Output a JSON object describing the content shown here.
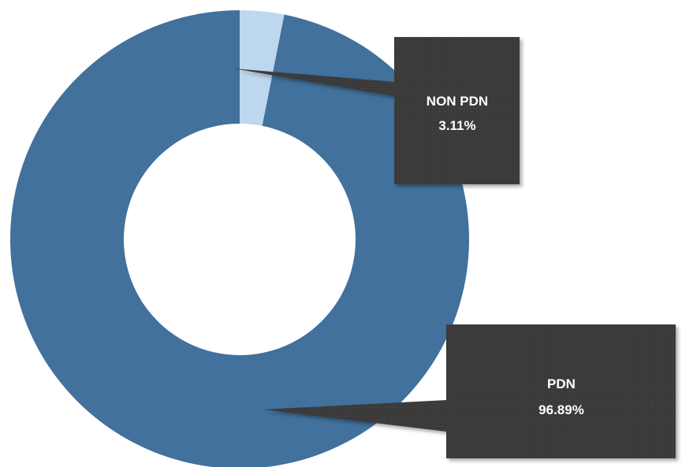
{
  "chart_data": {
    "type": "pie",
    "donut": true,
    "title": "",
    "categories": [
      "PDN",
      "NON PDN"
    ],
    "values": [
      96.89,
      3.11
    ],
    "labels": [
      {
        "category": "PDN",
        "value_text": "96.89%"
      },
      {
        "category": "NON PDN",
        "value_text": "3.11%"
      }
    ],
    "colors": {
      "PDN": "#41719C",
      "NON PDN": "#BDD7EE",
      "callout_fill": "#3A3A3A",
      "callout_text": "#FFFFFF"
    },
    "legend": "none"
  }
}
